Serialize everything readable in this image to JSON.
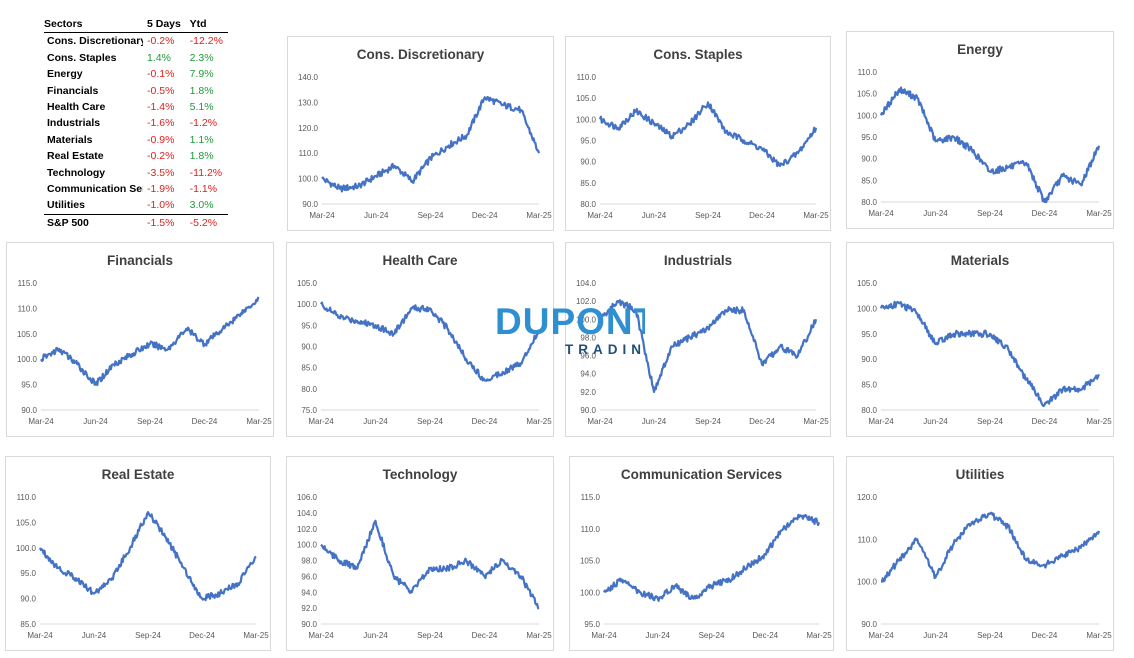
{
  "table": {
    "headers": [
      "Sectors",
      "5 Days",
      "Ytd"
    ],
    "rows": [
      {
        "name": "Cons. Discretionary",
        "d5": "-0.2%",
        "ytd": "-12.2%"
      },
      {
        "name": "Cons. Staples",
        "d5": "1.4%",
        "ytd": "2.3%"
      },
      {
        "name": "Energy",
        "d5": "-0.1%",
        "ytd": "7.9%"
      },
      {
        "name": "Financials",
        "d5": "-0.5%",
        "ytd": "1.8%"
      },
      {
        "name": "Health Care",
        "d5": "-1.4%",
        "ytd": "5.1%"
      },
      {
        "name": "Industrials",
        "d5": "-1.6%",
        "ytd": "-1.2%"
      },
      {
        "name": "Materials",
        "d5": "-0.9%",
        "ytd": "1.1%"
      },
      {
        "name": "Real Estate",
        "d5": "-0.2%",
        "ytd": "1.8%"
      },
      {
        "name": "Technology",
        "d5": "-3.5%",
        "ytd": "-11.2%"
      },
      {
        "name": "Communication Services",
        "d5": "-1.9%",
        "ytd": "-1.1%"
      },
      {
        "name": "Utilities",
        "d5": "-1.0%",
        "ytd": "3.0%"
      }
    ],
    "total": {
      "name": "S&P 500",
      "d5": "-1.5%",
      "ytd": "-5.2%"
    },
    "colors": {
      "negative": "#e0201c",
      "positive": "#1f9a3a"
    }
  },
  "logo": {
    "word": "DUPONT",
    "sub": "TRADING",
    "colors": {
      "main": "#2f8fd1",
      "dark": "#1f4e79"
    }
  },
  "chart_data": [
    {
      "type": "line",
      "title": "Cons. Discretionary",
      "series_color": "#4472c4",
      "x_ticks": [
        "Mar-24",
        "Jun-24",
        "Sep-24",
        "Dec-24",
        "Mar-25"
      ],
      "y_ticks": [
        "90.0",
        "100.0",
        "110.0",
        "120.0",
        "130.0",
        "140.0"
      ],
      "ylim": [
        90,
        140
      ],
      "x": [
        "Mar-24",
        "Apr-24",
        "May-24",
        "Jun-24",
        "Jul-24",
        "Aug-24",
        "Sep-24",
        "Oct-24",
        "Nov-24",
        "Dec-24",
        "Jan-25",
        "Feb-25",
        "Mar-25"
      ],
      "values": [
        100,
        96,
        97,
        101,
        105,
        99,
        108,
        113,
        117,
        132,
        129,
        127,
        110
      ]
    },
    {
      "type": "line",
      "title": "Cons. Staples",
      "series_color": "#4472c4",
      "x_ticks": [
        "Mar-24",
        "Jun-24",
        "Sep-24",
        "Dec-24",
        "Mar-25"
      ],
      "y_ticks": [
        "80.0",
        "85.0",
        "90.0",
        "95.0",
        "100.0",
        "105.0",
        "110.0"
      ],
      "ylim": [
        80,
        110
      ],
      "x": [
        "Mar-24",
        "Apr-24",
        "May-24",
        "Jun-24",
        "Jul-24",
        "Aug-24",
        "Sep-24",
        "Oct-24",
        "Nov-24",
        "Dec-24",
        "Jan-25",
        "Feb-25",
        "Mar-25"
      ],
      "values": [
        100,
        98,
        102,
        99,
        96,
        99,
        104,
        97,
        95,
        93,
        89,
        92,
        98
      ]
    },
    {
      "type": "line",
      "title": "Energy",
      "series_color": "#4472c4",
      "x_ticks": [
        "Mar-24",
        "Jun-24",
        "Sep-24",
        "Dec-24",
        "Mar-25"
      ],
      "y_ticks": [
        "80.0",
        "85.0",
        "90.0",
        "95.0",
        "100.0",
        "105.0",
        "110.0"
      ],
      "ylim": [
        80,
        110
      ],
      "x": [
        "Mar-24",
        "Apr-24",
        "May-24",
        "Jun-24",
        "Jul-24",
        "Aug-24",
        "Sep-24",
        "Oct-24",
        "Nov-24",
        "Dec-24",
        "Jan-25",
        "Feb-25",
        "Mar-25"
      ],
      "values": [
        100,
        106,
        104,
        94,
        95,
        92,
        87,
        88,
        89,
        80,
        86,
        84,
        93
      ]
    },
    {
      "type": "line",
      "title": "Financials",
      "series_color": "#4472c4",
      "x_ticks": [
        "Mar-24",
        "Jun-24",
        "Sep-24",
        "Dec-24",
        "Mar-25"
      ],
      "y_ticks": [
        "90.0",
        "95.0",
        "100.0",
        "105.0",
        "110.0",
        "115.0"
      ],
      "ylim": [
        90,
        115
      ],
      "x": [
        "Mar-24",
        "Apr-24",
        "May-24",
        "Jun-24",
        "Jul-24",
        "Aug-24",
        "Sep-24",
        "Oct-24",
        "Nov-24",
        "Dec-24",
        "Jan-25",
        "Feb-25",
        "Mar-25"
      ],
      "values": [
        100,
        102,
        99,
        95,
        99,
        101,
        103,
        102,
        106,
        103,
        106,
        109,
        112
      ]
    },
    {
      "type": "line",
      "title": "Health Care",
      "series_color": "#4472c4",
      "x_ticks": [
        "Mar-24",
        "Jun-24",
        "Sep-24",
        "Dec-24",
        "Mar-25"
      ],
      "y_ticks": [
        "75.0",
        "80.0",
        "85.0",
        "90.0",
        "95.0",
        "100.0",
        "105.0"
      ],
      "ylim": [
        75,
        105
      ],
      "x": [
        "Mar-24",
        "Apr-24",
        "May-24",
        "Jun-24",
        "Jul-24",
        "Aug-24",
        "Sep-24",
        "Oct-24",
        "Nov-24",
        "Dec-24",
        "Jan-25",
        "Feb-25",
        "Mar-25"
      ],
      "values": [
        100,
        97,
        96,
        95,
        93,
        99,
        99,
        94,
        87,
        82,
        84,
        86,
        94
      ]
    },
    {
      "type": "line",
      "title": "Industrials",
      "series_color": "#4472c4",
      "x_ticks": [
        "Mar-24",
        "Jun-24",
        "Sep-24",
        "Dec-24",
        "Mar-25"
      ],
      "y_ticks": [
        "90.0",
        "92.0",
        "94.0",
        "96.0",
        "98.0",
        "100.0",
        "102.0",
        "104.0"
      ],
      "ylim": [
        90,
        104
      ],
      "x": [
        "Mar-24",
        "Apr-24",
        "May-24",
        "Jun-24",
        "Jul-24",
        "Aug-24",
        "Sep-24",
        "Oct-24",
        "Nov-24",
        "Dec-24",
        "Jan-25",
        "Feb-25",
        "Mar-25"
      ],
      "values": [
        100,
        102,
        101,
        92,
        97,
        98,
        99,
        101,
        101,
        95,
        97,
        96,
        100
      ]
    },
    {
      "type": "line",
      "title": "Materials",
      "series_color": "#4472c4",
      "x_ticks": [
        "Mar-24",
        "Jun-24",
        "Sep-24",
        "Dec-24",
        "Mar-25"
      ],
      "y_ticks": [
        "80.0",
        "85.0",
        "90.0",
        "95.0",
        "100.0",
        "105.0"
      ],
      "ylim": [
        80,
        105
      ],
      "x": [
        "Mar-24",
        "Apr-24",
        "May-24",
        "Jun-24",
        "Jul-24",
        "Aug-24",
        "Sep-24",
        "Oct-24",
        "Nov-24",
        "Dec-24",
        "Jan-25",
        "Feb-25",
        "Mar-25"
      ],
      "values": [
        100,
        101,
        99,
        93,
        95,
        95,
        95,
        92,
        86,
        81,
        84,
        84,
        87
      ]
    },
    {
      "type": "line",
      "title": "Real Estate",
      "series_color": "#4472c4",
      "x_ticks": [
        "Mar-24",
        "Jun-24",
        "Sep-24",
        "Dec-24",
        "Mar-25"
      ],
      "y_ticks": [
        "85.0",
        "90.0",
        "95.0",
        "100.0",
        "105.0",
        "110.0"
      ],
      "ylim": [
        85,
        110
      ],
      "x": [
        "Mar-24",
        "Apr-24",
        "May-24",
        "Jun-24",
        "Jul-24",
        "Aug-24",
        "Sep-24",
        "Oct-24",
        "Nov-24",
        "Dec-24",
        "Jan-25",
        "Feb-25",
        "Mar-25"
      ],
      "values": [
        100,
        96,
        94,
        91,
        94,
        100,
        107,
        102,
        96,
        90,
        91,
        93,
        98
      ]
    },
    {
      "type": "line",
      "title": "Technology",
      "series_color": "#4472c4",
      "x_ticks": [
        "Mar-24",
        "Jun-24",
        "Sep-24",
        "Dec-24",
        "Mar-25"
      ],
      "y_ticks": [
        "90.0",
        "92.0",
        "94.0",
        "96.0",
        "98.0",
        "100.0",
        "102.0",
        "104.0",
        "106.0"
      ],
      "ylim": [
        90,
        106
      ],
      "x": [
        "Mar-24",
        "Apr-24",
        "May-24",
        "Jun-24",
        "Jul-24",
        "Aug-24",
        "Sep-24",
        "Oct-24",
        "Nov-24",
        "Dec-24",
        "Jan-25",
        "Feb-25",
        "Mar-25"
      ],
      "values": [
        100,
        98,
        97,
        103,
        96,
        94,
        97,
        97,
        98,
        96,
        98,
        96,
        92
      ]
    },
    {
      "type": "line",
      "title": "Communication Services",
      "series_color": "#4472c4",
      "x_ticks": [
        "Mar-24",
        "Jun-24",
        "Sep-24",
        "Dec-24",
        "Mar-25"
      ],
      "y_ticks": [
        "95.0",
        "100.0",
        "105.0",
        "110.0",
        "115.0"
      ],
      "ylim": [
        95,
        115
      ],
      "x": [
        "Mar-24",
        "Apr-24",
        "May-24",
        "Jun-24",
        "Jul-24",
        "Aug-24",
        "Sep-24",
        "Oct-24",
        "Nov-24",
        "Dec-24",
        "Jan-25",
        "Feb-25",
        "Mar-25"
      ],
      "values": [
        100,
        102,
        100,
        99,
        101,
        99,
        101,
        102,
        104,
        106,
        110,
        112,
        111
      ]
    },
    {
      "type": "line",
      "title": "Utilities",
      "series_color": "#4472c4",
      "x_ticks": [
        "Mar-24",
        "Jun-24",
        "Sep-24",
        "Dec-24",
        "Mar-25"
      ],
      "y_ticks": [
        "90.0",
        "100.0",
        "110.0",
        "120.0"
      ],
      "ylim": [
        90,
        120
      ],
      "x": [
        "Mar-24",
        "Apr-24",
        "May-24",
        "Jun-24",
        "Jul-24",
        "Aug-24",
        "Sep-24",
        "Oct-24",
        "Nov-24",
        "Dec-24",
        "Jan-25",
        "Feb-25",
        "Mar-25"
      ],
      "values": [
        100,
        105,
        110,
        101,
        109,
        114,
        116,
        113,
        105,
        104,
        106,
        108,
        112
      ]
    }
  ]
}
